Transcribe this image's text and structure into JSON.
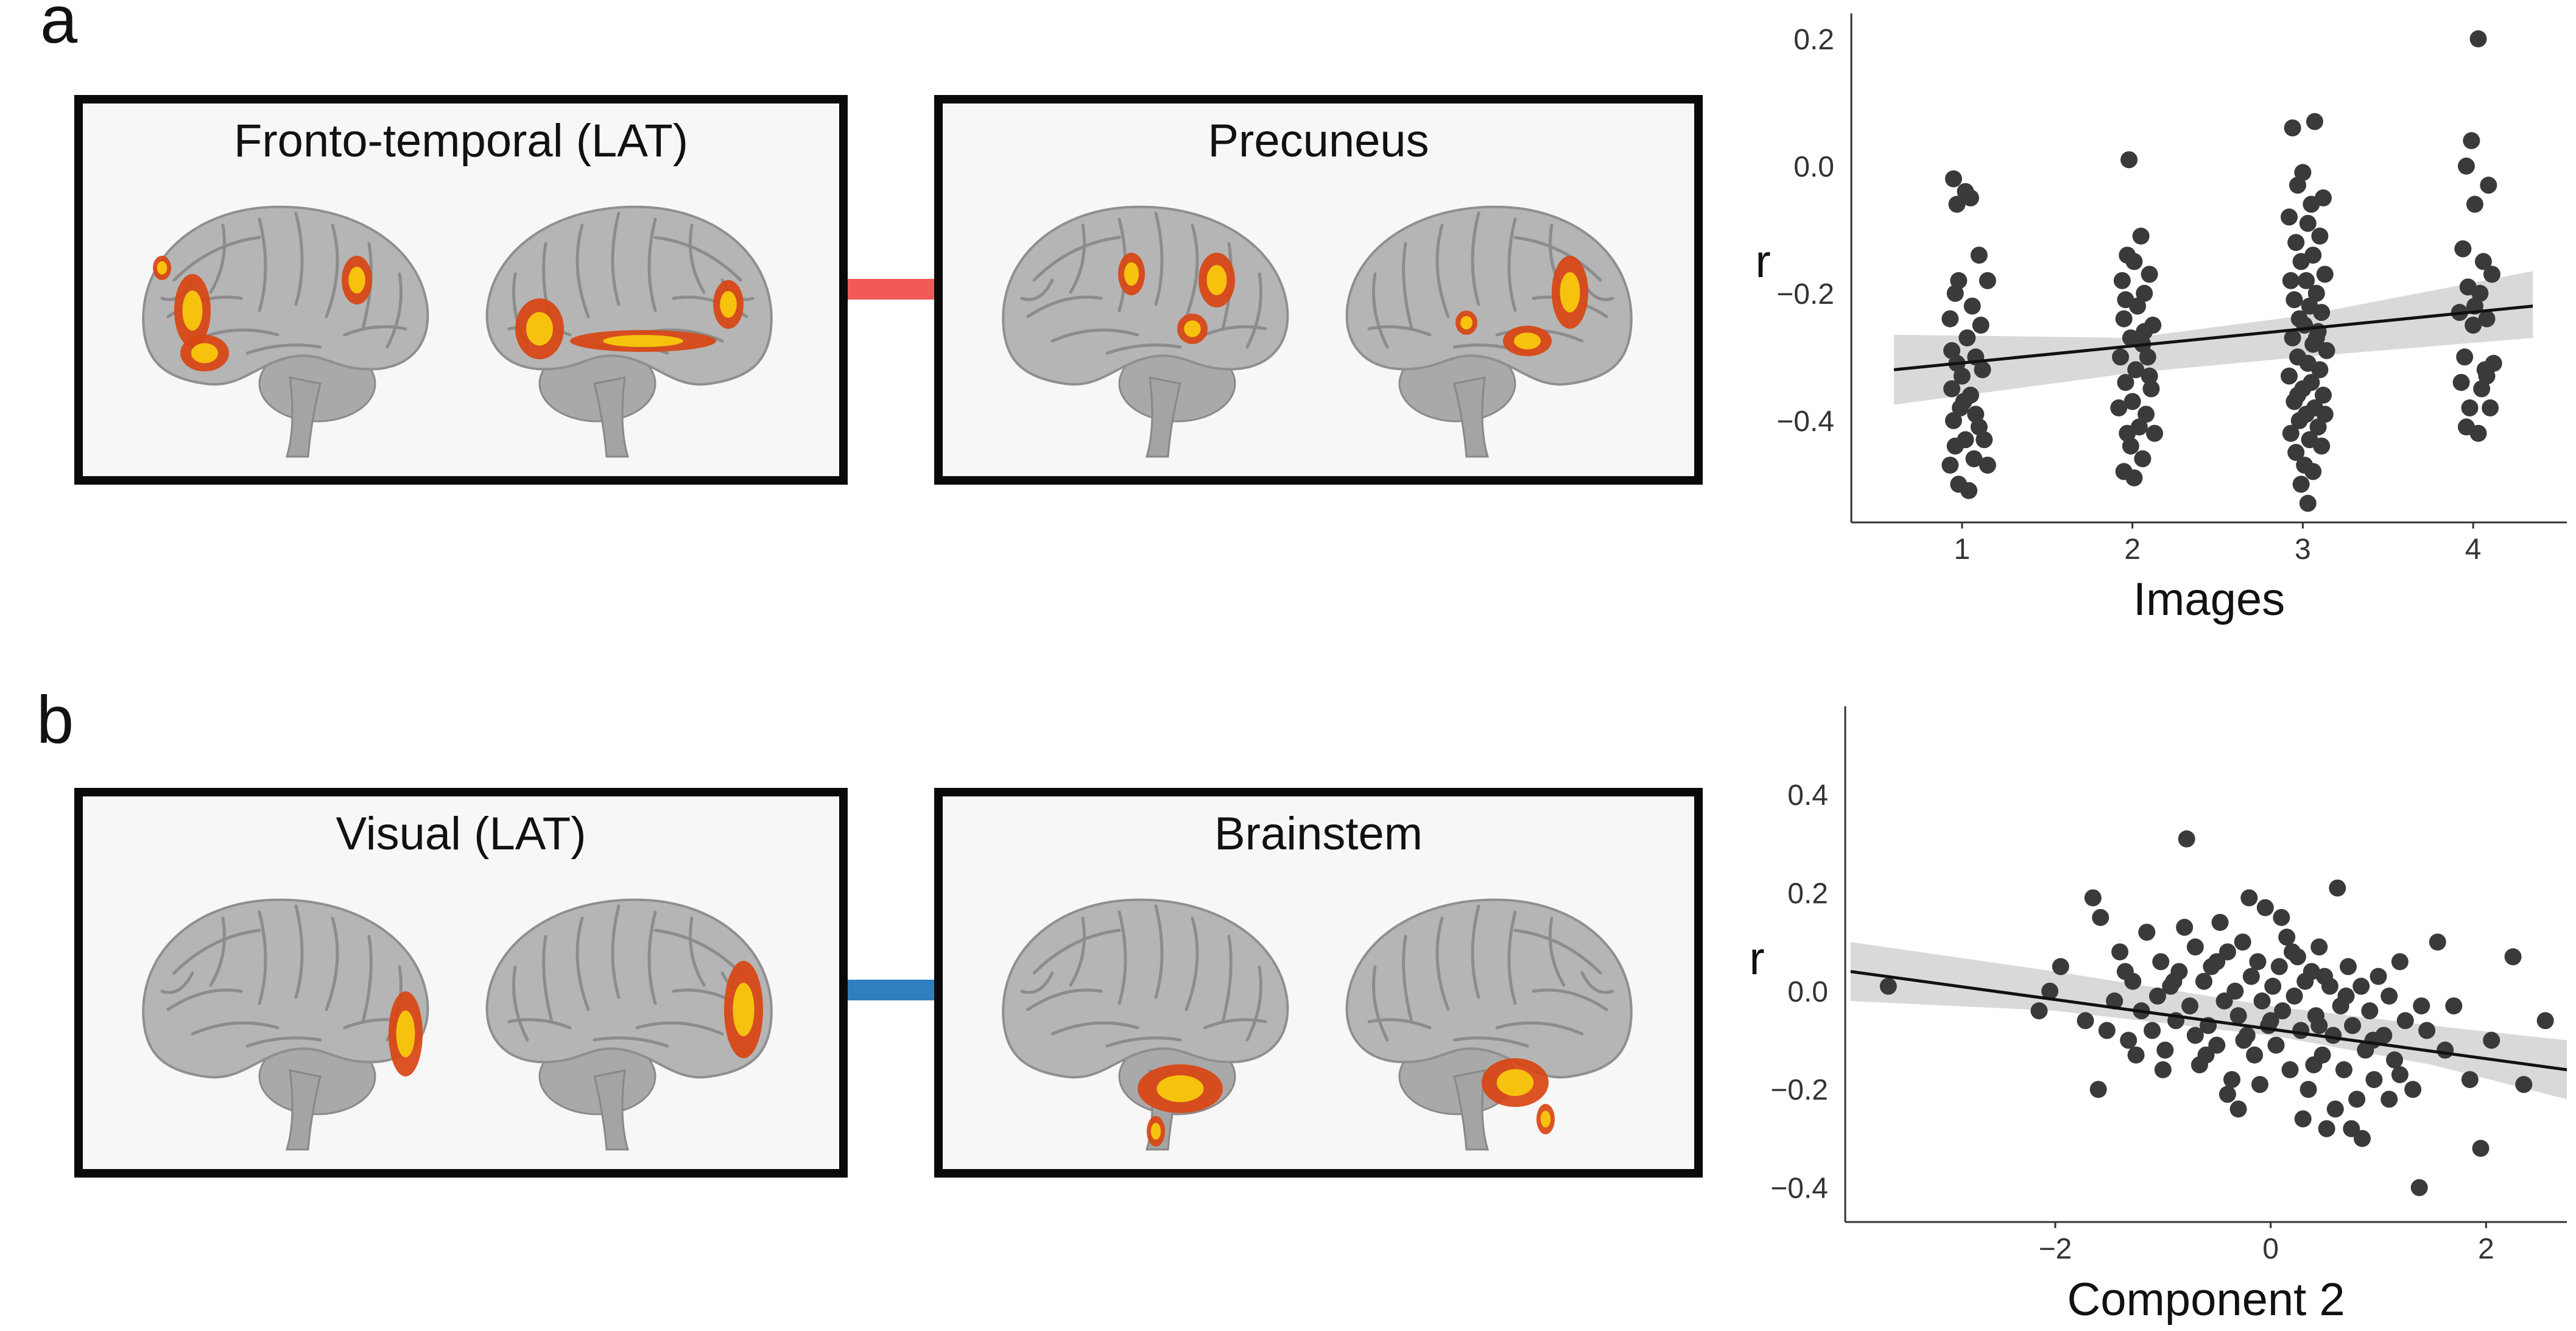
{
  "panels": {
    "a": {
      "letter": "a",
      "left_title": "Fronto-temporal (LAT)",
      "right_title": "Precuneus",
      "connector_color": "#f25a5a"
    },
    "b": {
      "letter": "b",
      "left_title": "Visual (LAT)",
      "right_title": "Brainstem",
      "connector_color": "#2f7fbf"
    }
  },
  "colors": {
    "brain": "#b5b5b5",
    "activation_outer": "#d94412",
    "activation_inner": "#f8c80e",
    "points": "#3a3a3a",
    "fit_line": "#111111",
    "ci_band": "#cfcfcf"
  },
  "chart_data": [
    {
      "type": "scatter",
      "title": "",
      "xlabel": "Images",
      "ylabel": "r",
      "xlim": [
        0.35,
        4.55
      ],
      "ylim": [
        -0.56,
        0.24
      ],
      "xticks": [
        1,
        2,
        3,
        4
      ],
      "yticks": [
        -0.4,
        -0.2,
        0.0,
        0.2
      ],
      "ytick_labels": [
        "−0.4",
        "−0.2",
        "0.0",
        "0.2"
      ],
      "grid": false,
      "fit": {
        "x": [
          0.6,
          4.35
        ],
        "y": [
          -0.32,
          -0.22
        ]
      },
      "ci": {
        "x": [
          0.6,
          2.0,
          3.0,
          4.35
        ],
        "upper": [
          -0.265,
          -0.27,
          -0.235,
          -0.165
        ],
        "lower": [
          -0.375,
          -0.325,
          -0.3,
          -0.27
        ]
      },
      "points": [
        [
          0.95,
          -0.02
        ],
        [
          0.97,
          -0.06
        ],
        [
          1.02,
          -0.04
        ],
        [
          1.05,
          -0.05
        ],
        [
          0.98,
          -0.18
        ],
        [
          0.96,
          -0.2
        ],
        [
          1.1,
          -0.14
        ],
        [
          1.15,
          -0.18
        ],
        [
          0.93,
          -0.24
        ],
        [
          1.06,
          -0.22
        ],
        [
          1.03,
          -0.27
        ],
        [
          1.08,
          -0.3
        ],
        [
          0.97,
          -0.31
        ],
        [
          1.0,
          -0.33
        ],
        [
          1.12,
          -0.32
        ],
        [
          0.94,
          -0.35
        ],
        [
          1.05,
          -0.36
        ],
        [
          0.99,
          -0.38
        ],
        [
          1.08,
          -0.39
        ],
        [
          0.95,
          -0.4
        ],
        [
          1.1,
          -0.41
        ],
        [
          1.02,
          -0.43
        ],
        [
          0.96,
          -0.44
        ],
        [
          1.13,
          -0.43
        ],
        [
          1.07,
          -0.46
        ],
        [
          0.93,
          -0.47
        ],
        [
          1.15,
          -0.47
        ],
        [
          0.98,
          -0.5
        ],
        [
          1.04,
          -0.51
        ],
        [
          1.01,
          -0.37
        ],
        [
          1.11,
          -0.25
        ],
        [
          0.94,
          -0.29
        ],
        [
          1.98,
          0.01
        ],
        [
          2.05,
          -0.11
        ],
        [
          1.97,
          -0.14
        ],
        [
          2.01,
          -0.15
        ],
        [
          2.1,
          -0.17
        ],
        [
          1.94,
          -0.18
        ],
        [
          2.07,
          -0.2
        ],
        [
          2.03,
          -0.22
        ],
        [
          1.95,
          -0.24
        ],
        [
          2.12,
          -0.25
        ],
        [
          1.99,
          -0.27
        ],
        [
          2.06,
          -0.28
        ],
        [
          1.93,
          -0.3
        ],
        [
          2.09,
          -0.3
        ],
        [
          2.02,
          -0.32
        ],
        [
          1.96,
          -0.34
        ],
        [
          2.11,
          -0.35
        ],
        [
          2.0,
          -0.37
        ],
        [
          1.92,
          -0.38
        ],
        [
          2.08,
          -0.39
        ],
        [
          2.04,
          -0.41
        ],
        [
          1.97,
          -0.42
        ],
        [
          2.13,
          -0.42
        ],
        [
          1.99,
          -0.44
        ],
        [
          2.06,
          -0.46
        ],
        [
          1.95,
          -0.48
        ],
        [
          2.01,
          -0.49
        ],
        [
          2.07,
          -0.26
        ],
        [
          1.96,
          -0.21
        ],
        [
          2.1,
          -0.33
        ],
        [
          2.94,
          0.06
        ],
        [
          3.07,
          0.07
        ],
        [
          3.0,
          -0.01
        ],
        [
          2.97,
          -0.03
        ],
        [
          3.05,
          -0.06
        ],
        [
          3.12,
          -0.05
        ],
        [
          2.92,
          -0.08
        ],
        [
          3.03,
          -0.09
        ],
        [
          3.1,
          -0.11
        ],
        [
          2.96,
          -0.12
        ],
        [
          3.06,
          -0.14
        ],
        [
          2.99,
          -0.15
        ],
        [
          3.13,
          -0.17
        ],
        [
          2.93,
          -0.18
        ],
        [
          3.02,
          -0.18
        ],
        [
          3.08,
          -0.2
        ],
        [
          2.95,
          -0.21
        ],
        [
          3.04,
          -0.22
        ],
        [
          3.11,
          -0.23
        ],
        [
          2.98,
          -0.24
        ],
        [
          3.01,
          -0.25
        ],
        [
          3.09,
          -0.26
        ],
        [
          2.94,
          -0.27
        ],
        [
          3.06,
          -0.28
        ],
        [
          3.14,
          -0.29
        ],
        [
          2.97,
          -0.3
        ],
        [
          3.03,
          -0.31
        ],
        [
          3.1,
          -0.32
        ],
        [
          2.92,
          -0.33
        ],
        [
          3.05,
          -0.34
        ],
        [
          3.0,
          -0.35
        ],
        [
          3.12,
          -0.36
        ],
        [
          2.95,
          -0.37
        ],
        [
          3.07,
          -0.38
        ],
        [
          3.02,
          -0.39
        ],
        [
          2.98,
          -0.4
        ],
        [
          3.09,
          -0.41
        ],
        [
          2.93,
          -0.42
        ],
        [
          3.04,
          -0.43
        ],
        [
          3.11,
          -0.44
        ],
        [
          2.96,
          -0.45
        ],
        [
          3.01,
          -0.47
        ],
        [
          3.06,
          -0.48
        ],
        [
          2.99,
          -0.5
        ],
        [
          3.03,
          -0.53
        ],
        [
          2.97,
          -0.36
        ],
        [
          3.08,
          -0.27
        ],
        [
          3.13,
          -0.39
        ],
        [
          4.03,
          0.2
        ],
        [
          3.99,
          0.04
        ],
        [
          3.96,
          0.0
        ],
        [
          4.09,
          -0.03
        ],
        [
          4.01,
          -0.06
        ],
        [
          3.94,
          -0.13
        ],
        [
          4.06,
          -0.15
        ],
        [
          4.11,
          -0.17
        ],
        [
          3.97,
          -0.19
        ],
        [
          4.04,
          -0.2
        ],
        [
          3.92,
          -0.23
        ],
        [
          4.08,
          -0.24
        ],
        [
          4.0,
          -0.25
        ],
        [
          3.95,
          -0.3
        ],
        [
          4.12,
          -0.31
        ],
        [
          4.07,
          -0.32
        ],
        [
          3.93,
          -0.34
        ],
        [
          4.05,
          -0.35
        ],
        [
          4.1,
          -0.38
        ],
        [
          3.98,
          -0.38
        ],
        [
          3.96,
          -0.41
        ],
        [
          4.03,
          -0.42
        ],
        [
          4.08,
          -0.33
        ],
        [
          4.01,
          -0.22
        ]
      ]
    },
    {
      "type": "scatter",
      "title": "",
      "xlabel": "Component 2",
      "ylabel": "r",
      "xlim": [
        -3.95,
        2.75
      ],
      "ylim": [
        -0.47,
        0.58
      ],
      "xticks": [
        -2,
        0,
        2
      ],
      "xtick_labels": [
        "−2",
        "0",
        "2"
      ],
      "yticks": [
        -0.4,
        -0.2,
        0.0,
        0.2,
        0.4
      ],
      "ytick_labels": [
        "−0.4",
        "−0.2",
        "0.0",
        "0.2",
        "0.4"
      ],
      "grid": false,
      "fit": {
        "x": [
          -3.9,
          2.75
        ],
        "y": [
          0.04,
          -0.16
        ]
      },
      "ci": {
        "x": [
          -3.9,
          -2.0,
          0.0,
          1.5,
          2.75
        ],
        "upper": [
          0.1,
          0.04,
          -0.03,
          -0.07,
          -0.1
        ],
        "lower": [
          -0.02,
          -0.04,
          -0.09,
          -0.15,
          -0.22
        ]
      },
      "points": [
        [
          -3.55,
          0.01
        ],
        [
          -2.15,
          -0.04
        ],
        [
          -2.05,
          0.0
        ],
        [
          -1.95,
          0.05
        ],
        [
          -1.72,
          -0.06
        ],
        [
          -1.65,
          0.19
        ],
        [
          -1.58,
          0.15
        ],
        [
          -1.52,
          -0.08
        ],
        [
          -1.45,
          -0.02
        ],
        [
          -1.4,
          0.08
        ],
        [
          -1.32,
          -0.1
        ],
        [
          -1.28,
          0.02
        ],
        [
          -1.2,
          -0.04
        ],
        [
          -1.15,
          0.12
        ],
        [
          -1.1,
          -0.08
        ],
        [
          -1.05,
          -0.01
        ],
        [
          -1.02,
          0.06
        ],
        [
          -0.98,
          -0.12
        ],
        [
          -0.93,
          0.01
        ],
        [
          -0.88,
          -0.06
        ],
        [
          -0.85,
          0.04
        ],
        [
          -0.8,
          0.13
        ],
        [
          -0.78,
          0.31
        ],
        [
          -0.75,
          -0.03
        ],
        [
          -0.7,
          0.09
        ],
        [
          -0.66,
          -0.15
        ],
        [
          -0.62,
          0.02
        ],
        [
          -0.58,
          -0.07
        ],
        [
          -0.55,
          0.05
        ],
        [
          -0.5,
          -0.11
        ],
        [
          -0.47,
          0.14
        ],
        [
          -0.43,
          -0.02
        ],
        [
          -0.4,
          0.08
        ],
        [
          -0.36,
          -0.18
        ],
        [
          -0.33,
          0.0
        ],
        [
          -0.3,
          -0.05
        ],
        [
          -0.26,
          0.1
        ],
        [
          -0.22,
          -0.09
        ],
        [
          -0.18,
          0.03
        ],
        [
          -0.15,
          -0.13
        ],
        [
          -0.12,
          0.06
        ],
        [
          -0.08,
          -0.02
        ],
        [
          -0.05,
          0.17
        ],
        [
          -0.02,
          -0.07
        ],
        [
          0.02,
          0.01
        ],
        [
          0.05,
          -0.11
        ],
        [
          0.08,
          0.05
        ],
        [
          0.11,
          -0.04
        ],
        [
          0.15,
          0.11
        ],
        [
          0.18,
          -0.16
        ],
        [
          0.22,
          -0.01
        ],
        [
          0.25,
          0.07
        ],
        [
          0.28,
          -0.08
        ],
        [
          0.32,
          0.02
        ],
        [
          0.35,
          -0.2
        ],
        [
          0.38,
          0.04
        ],
        [
          0.42,
          -0.05
        ],
        [
          0.45,
          0.09
        ],
        [
          0.48,
          -0.13
        ],
        [
          0.52,
          -0.28
        ],
        [
          0.55,
          0.01
        ],
        [
          0.58,
          -0.09
        ],
        [
          0.62,
          0.21
        ],
        [
          0.65,
          -0.03
        ],
        [
          0.68,
          -0.16
        ],
        [
          0.72,
          0.05
        ],
        [
          0.76,
          -0.07
        ],
        [
          0.8,
          -0.22
        ],
        [
          0.84,
          0.01
        ],
        [
          0.88,
          -0.12
        ],
        [
          0.92,
          -0.04
        ],
        [
          0.96,
          -0.18
        ],
        [
          1.0,
          0.03
        ],
        [
          1.05,
          -0.09
        ],
        [
          1.1,
          -0.01
        ],
        [
          1.15,
          -0.14
        ],
        [
          1.2,
          0.06
        ],
        [
          1.25,
          -0.06
        ],
        [
          1.32,
          -0.2
        ],
        [
          1.38,
          -0.4
        ],
        [
          1.45,
          -0.08
        ],
        [
          1.55,
          0.1
        ],
        [
          1.62,
          -0.12
        ],
        [
          1.7,
          -0.03
        ],
        [
          1.85,
          -0.18
        ],
        [
          1.95,
          -0.32
        ],
        [
          2.05,
          -0.1
        ],
        [
          2.25,
          0.07
        ],
        [
          2.35,
          -0.19
        ],
        [
          2.55,
          -0.06
        ],
        [
          -0.6,
          -0.13
        ],
        [
          -0.2,
          0.19
        ],
        [
          0.1,
          0.15
        ],
        [
          0.6,
          -0.24
        ],
        [
          -1.0,
          -0.16
        ],
        [
          -0.4,
          -0.21
        ],
        [
          0.3,
          -0.26
        ],
        [
          0.75,
          -0.28
        ],
        [
          1.1,
          -0.22
        ],
        [
          -1.6,
          -0.2
        ],
        [
          -0.7,
          -0.09
        ],
        [
          0.4,
          -0.15
        ],
        [
          0.95,
          -0.1
        ],
        [
          1.4,
          -0.03
        ],
        [
          -1.25,
          -0.13
        ],
        [
          -0.3,
          -0.24
        ],
        [
          0.2,
          0.08
        ],
        [
          0.5,
          0.03
        ],
        [
          -0.9,
          0.02
        ],
        [
          -0.1,
          -0.19
        ],
        [
          0.7,
          -0.01
        ],
        [
          1.2,
          -0.17
        ],
        [
          -0.5,
          0.06
        ],
        [
          0.0,
          -0.06
        ],
        [
          0.85,
          -0.3
        ],
        [
          -1.35,
          0.04
        ],
        [
          -0.25,
          -0.1
        ],
        [
          0.45,
          -0.07
        ]
      ]
    }
  ]
}
